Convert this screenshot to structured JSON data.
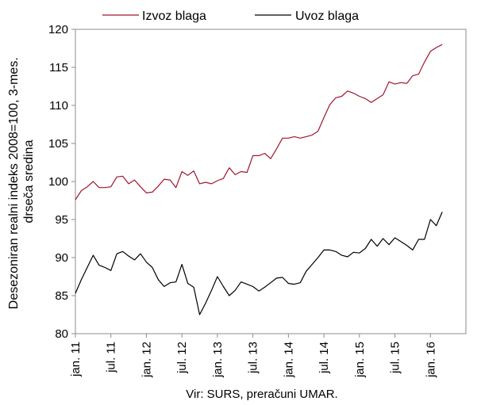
{
  "chart_data": {
    "type": "line",
    "title": "",
    "xlabel": "",
    "ylabel_lines": [
      "Desezoniran realni indeks 2008=100, 3-mes.",
      "drseča sredina"
    ],
    "source": "Vir: SURS, preračuni UMAR.",
    "ylim": [
      80,
      120
    ],
    "yticks": [
      80,
      85,
      90,
      95,
      100,
      105,
      110,
      115,
      120
    ],
    "xtick_labels": [
      "jan. 11",
      "jul. 11",
      "jan. 12",
      "jul. 12",
      "jan. 13",
      "jul. 13",
      "jan. 14",
      "jul. 14",
      "jan. 15",
      "jul. 15",
      "jan. 16"
    ],
    "xtick_months": [
      0,
      6,
      12,
      18,
      24,
      30,
      36,
      42,
      48,
      54,
      60
    ],
    "x_start": "jan. 11",
    "x_unit": "month",
    "month_count": 66,
    "grid": false,
    "legend_position": "top",
    "series": [
      {
        "name": "Izvoz blaga",
        "color": "#a0162c",
        "values": [
          97.6,
          98.8,
          99.3,
          100.0,
          99.2,
          99.2,
          99.3,
          100.6,
          100.7,
          99.7,
          100.2,
          99.3,
          98.5,
          98.6,
          99.4,
          100.3,
          100.2,
          99.2,
          101.3,
          100.8,
          101.4,
          99.7,
          99.9,
          99.7,
          100.1,
          100.4,
          101.8,
          100.9,
          101.3,
          101.2,
          103.4,
          103.4,
          103.7,
          103.0,
          104.3,
          105.7,
          105.7,
          105.9,
          105.7,
          105.9,
          106.1,
          106.6,
          108.4,
          110.1,
          111.0,
          111.2,
          111.9,
          111.6,
          111.2,
          110.9,
          110.4,
          110.9,
          111.4,
          113.1,
          112.8,
          113.0,
          112.9,
          113.9,
          114.1,
          115.7,
          117.1,
          117.6,
          118.0
        ]
      },
      {
        "name": "Uvoz blaga",
        "color": "#000000",
        "values": [
          85.3,
          87.1,
          88.7,
          90.3,
          89.0,
          88.7,
          88.3,
          90.5,
          90.8,
          90.2,
          89.7,
          90.5,
          89.4,
          88.7,
          87.1,
          86.2,
          86.7,
          86.8,
          89.1,
          86.6,
          86.1,
          82.5,
          84.0,
          85.7,
          87.5,
          86.2,
          85.0,
          85.7,
          86.8,
          86.5,
          86.2,
          85.6,
          86.1,
          86.7,
          87.3,
          87.4,
          86.6,
          86.5,
          86.7,
          88.2,
          89.1,
          90.0,
          91.0,
          91.0,
          90.8,
          90.3,
          90.1,
          90.7,
          90.6,
          91.2,
          92.4,
          91.5,
          92.5,
          91.7,
          92.6,
          92.1,
          91.6,
          91.0,
          92.4,
          92.4,
          95.0,
          94.2,
          96.0
        ]
      }
    ]
  }
}
